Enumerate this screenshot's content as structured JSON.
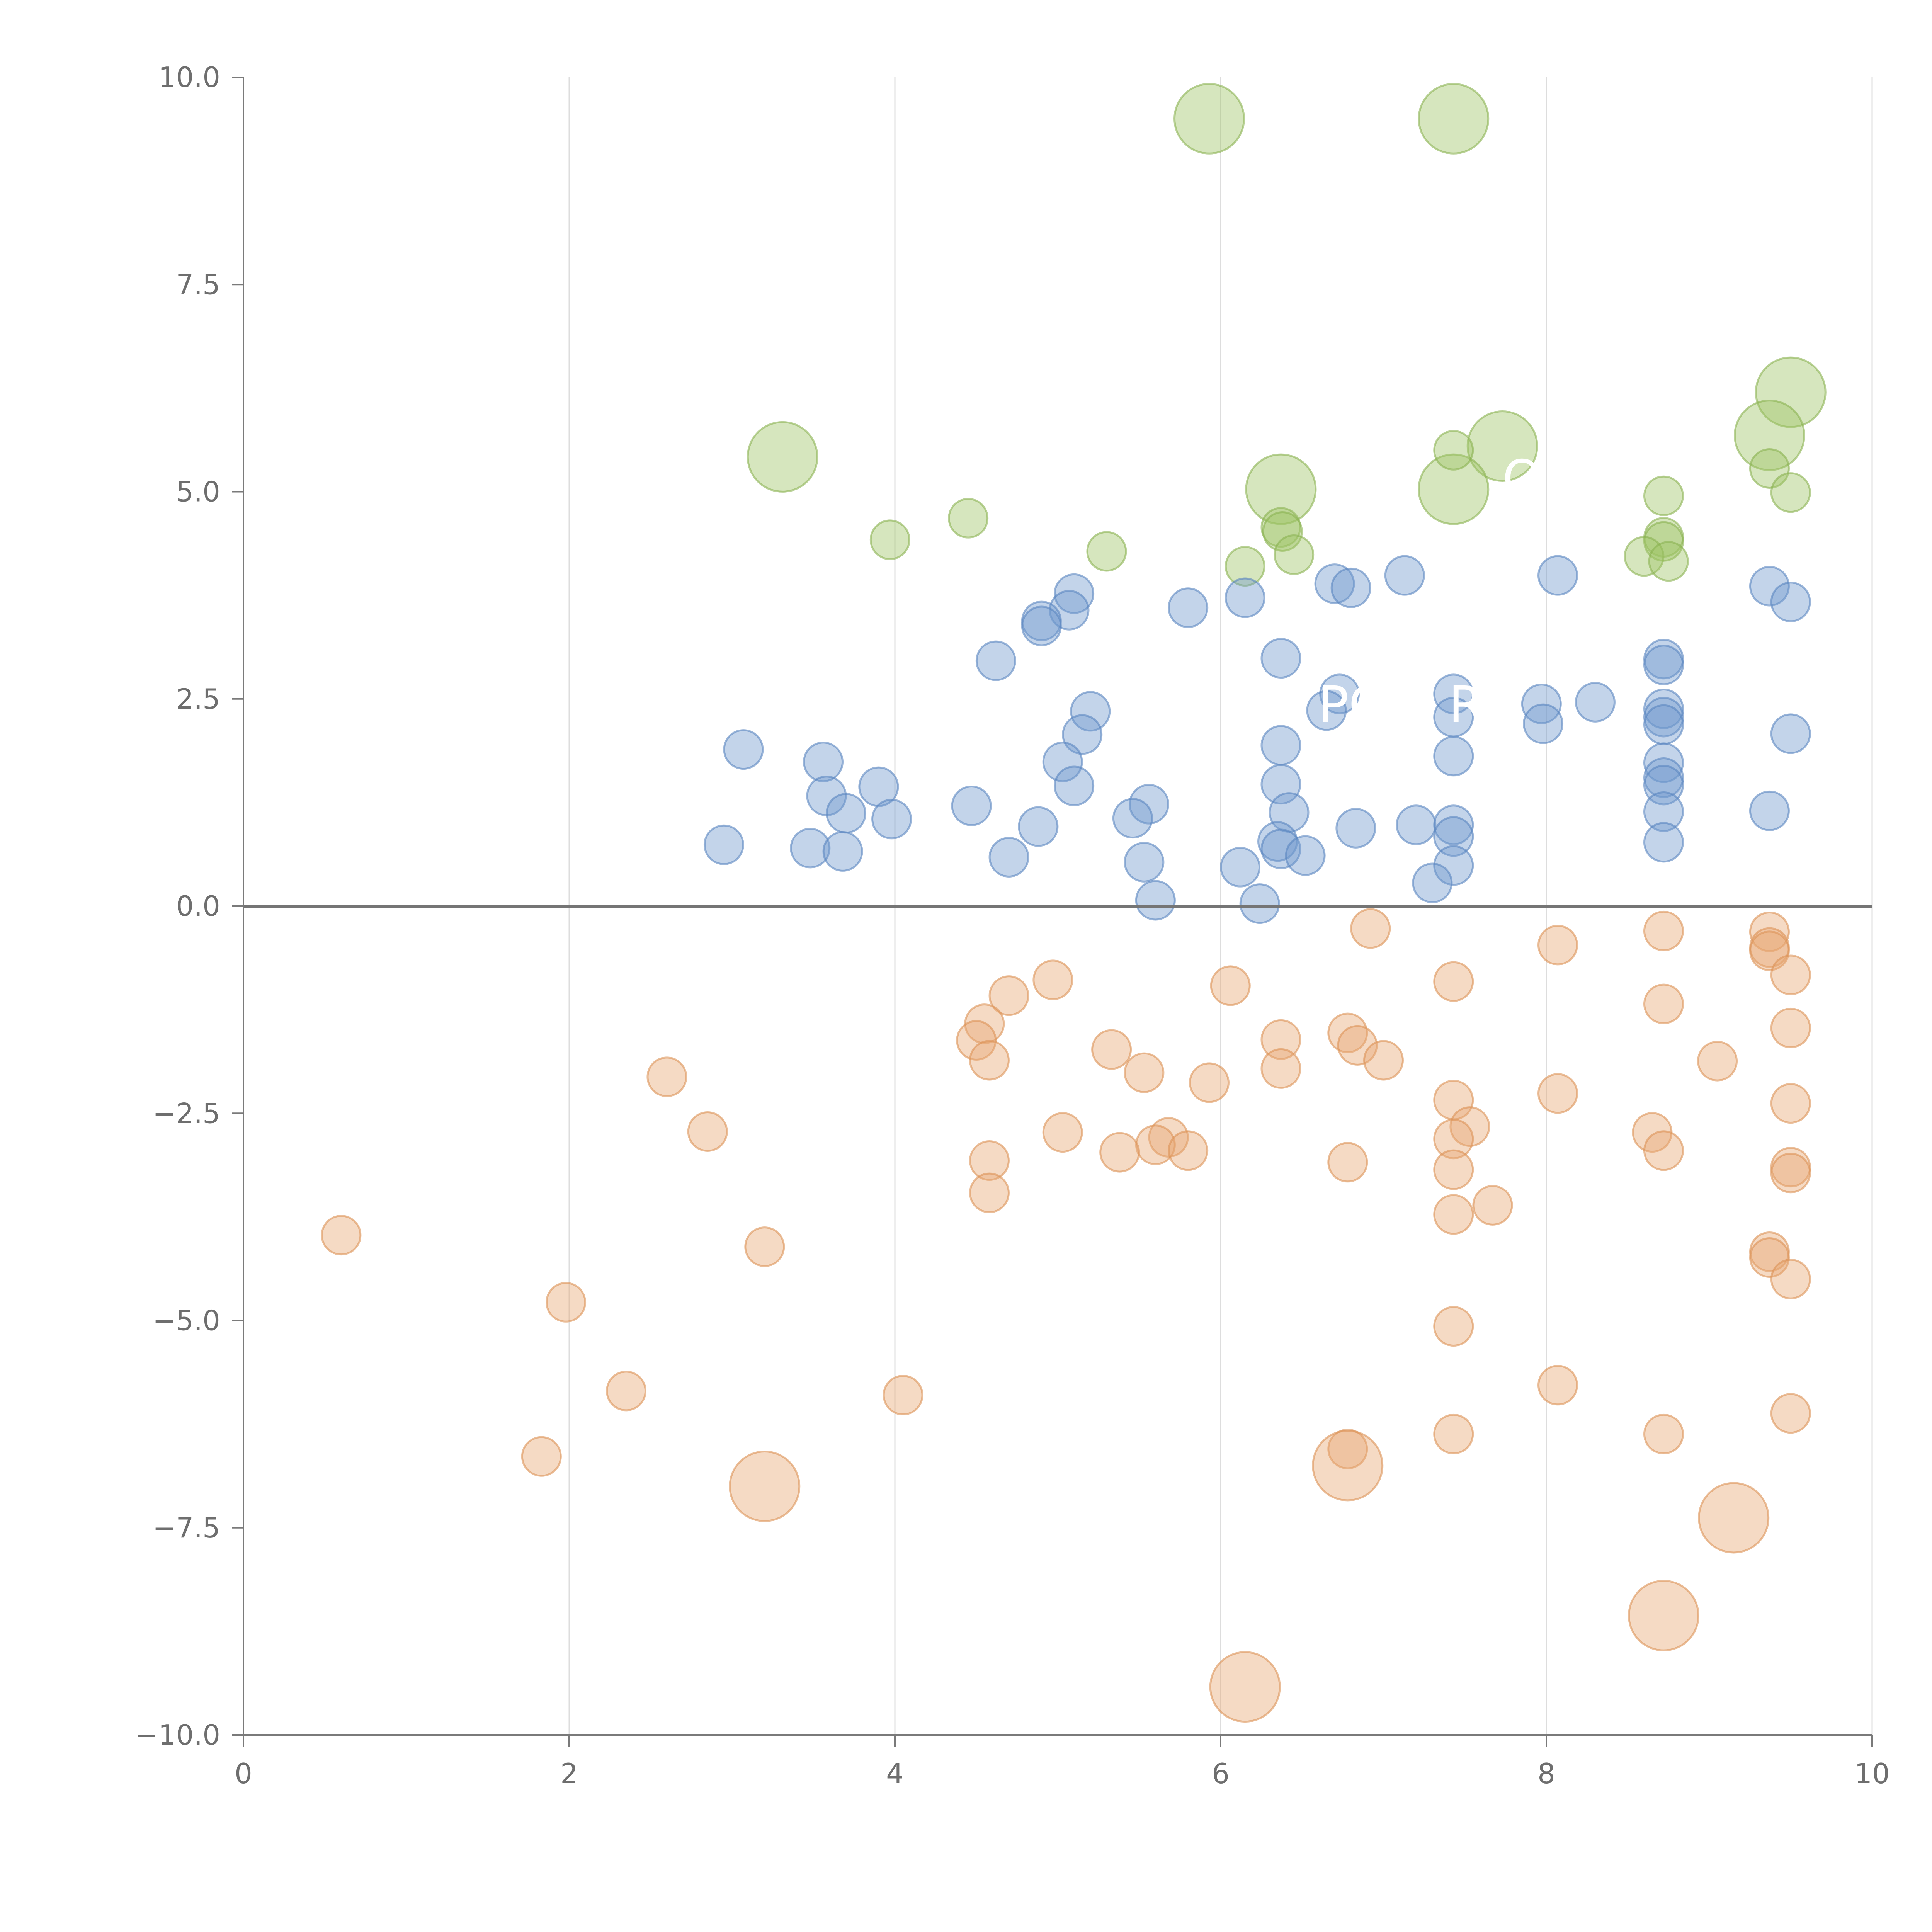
{
  "chart_data": {
    "type": "scatter",
    "title": "",
    "xlabel": "",
    "ylabel": "",
    "xlim": [
      0,
      10
    ],
    "ylim": [
      -10,
      10
    ],
    "x_ticks": [
      0,
      2,
      4,
      6,
      8,
      10
    ],
    "x_tick_labels": [
      "0",
      "2",
      "4",
      "6",
      "8",
      "10"
    ],
    "y_ticks": [
      10,
      7.5,
      5,
      2.5,
      0,
      -2.5,
      -5,
      -7.5,
      -10
    ],
    "y_tick_labels": [
      "10.0",
      "7.5",
      "5.0",
      "2.5",
      "0.0",
      "−2.5",
      "−5.0",
      "−7.5",
      "−10.0"
    ],
    "grid": "vertical",
    "zero_line": true,
    "annotations": [
      "PO",
      "R",
      "O"
    ],
    "series": [
      {
        "name": "green",
        "color": "#9ec463",
        "stroke": "#8ab351",
        "points": [
          {
            "x": 5.93,
            "y": 9.5,
            "size": 3
          },
          {
            "x": 7.43,
            "y": 9.5,
            "size": 3
          },
          {
            "x": 9.5,
            "y": 6.2,
            "size": 3
          },
          {
            "x": 9.37,
            "y": 5.68,
            "size": 3
          },
          {
            "x": 7.73,
            "y": 5.55,
            "size": 3
          },
          {
            "x": 3.31,
            "y": 5.42,
            "size": 3
          },
          {
            "x": 6.37,
            "y": 5.03,
            "size": 3
          },
          {
            "x": 7.43,
            "y": 5.03,
            "size": 3
          },
          {
            "x": 7.43,
            "y": 5.5,
            "size": 1
          },
          {
            "x": 9.37,
            "y": 5.28,
            "size": 1
          },
          {
            "x": 8.72,
            "y": 4.95,
            "size": 1
          },
          {
            "x": 9.5,
            "y": 4.99,
            "size": 1
          },
          {
            "x": 4.45,
            "y": 4.68,
            "size": 1
          },
          {
            "x": 6.37,
            "y": 4.57,
            "size": 1
          },
          {
            "x": 6.38,
            "y": 4.52,
            "size": 1
          },
          {
            "x": 3.97,
            "y": 4.42,
            "size": 1
          },
          {
            "x": 8.72,
            "y": 4.45,
            "size": 1
          },
          {
            "x": 8.72,
            "y": 4.4,
            "size": 1
          },
          {
            "x": 5.3,
            "y": 4.28,
            "size": 1
          },
          {
            "x": 6.45,
            "y": 4.24,
            "size": 1
          },
          {
            "x": 8.6,
            "y": 4.22,
            "size": 1
          },
          {
            "x": 8.75,
            "y": 4.16,
            "size": 1
          },
          {
            "x": 6.15,
            "y": 4.1,
            "size": 1
          }
        ]
      },
      {
        "name": "blue",
        "color": "#7198cd",
        "stroke": "#5a85bf",
        "points": [
          {
            "x": 7.13,
            "y": 3.99,
            "size": 1
          },
          {
            "x": 8.07,
            "y": 3.99,
            "size": 1
          },
          {
            "x": 6.7,
            "y": 3.89,
            "size": 1
          },
          {
            "x": 6.8,
            "y": 3.84,
            "size": 1
          },
          {
            "x": 9.37,
            "y": 3.86,
            "size": 1
          },
          {
            "x": 5.1,
            "y": 3.77,
            "size": 1
          },
          {
            "x": 6.15,
            "y": 3.72,
            "size": 1
          },
          {
            "x": 9.5,
            "y": 3.67,
            "size": 1
          },
          {
            "x": 5.8,
            "y": 3.6,
            "size": 1
          },
          {
            "x": 5.07,
            "y": 3.57,
            "size": 1
          },
          {
            "x": 4.9,
            "y": 3.44,
            "size": 1
          },
          {
            "x": 4.9,
            "y": 3.38,
            "size": 1
          },
          {
            "x": 6.37,
            "y": 2.99,
            "size": 1
          },
          {
            "x": 4.62,
            "y": 2.96,
            "size": 1
          },
          {
            "x": 8.72,
            "y": 2.98,
            "size": 1
          },
          {
            "x": 8.72,
            "y": 2.91,
            "size": 1
          },
          {
            "x": 6.73,
            "y": 2.56,
            "size": 1
          },
          {
            "x": 7.43,
            "y": 2.56,
            "size": 1
          },
          {
            "x": 7.97,
            "y": 2.44,
            "size": 1
          },
          {
            "x": 8.3,
            "y": 2.46,
            "size": 1
          },
          {
            "x": 8.72,
            "y": 2.38,
            "size": 1
          },
          {
            "x": 6.65,
            "y": 2.36,
            "size": 1
          },
          {
            "x": 5.2,
            "y": 2.35,
            "size": 1
          },
          {
            "x": 7.43,
            "y": 2.28,
            "size": 1
          },
          {
            "x": 8.72,
            "y": 2.28,
            "size": 1
          },
          {
            "x": 7.98,
            "y": 2.2,
            "size": 1
          },
          {
            "x": 8.72,
            "y": 2.19,
            "size": 1
          },
          {
            "x": 5.15,
            "y": 2.07,
            "size": 1
          },
          {
            "x": 9.5,
            "y": 2.08,
            "size": 1
          },
          {
            "x": 6.37,
            "y": 1.94,
            "size": 1
          },
          {
            "x": 3.07,
            "y": 1.89,
            "size": 1
          },
          {
            "x": 7.43,
            "y": 1.81,
            "size": 1
          },
          {
            "x": 3.56,
            "y": 1.74,
            "size": 1
          },
          {
            "x": 5.03,
            "y": 1.74,
            "size": 1
          },
          {
            "x": 8.72,
            "y": 1.73,
            "size": 1
          },
          {
            "x": 8.72,
            "y": 1.55,
            "size": 1
          },
          {
            "x": 6.37,
            "y": 1.47,
            "size": 1
          },
          {
            "x": 8.72,
            "y": 1.46,
            "size": 1
          },
          {
            "x": 3.9,
            "y": 1.44,
            "size": 1
          },
          {
            "x": 5.1,
            "y": 1.45,
            "size": 1
          },
          {
            "x": 3.58,
            "y": 1.33,
            "size": 1
          },
          {
            "x": 5.56,
            "y": 1.23,
            "size": 1
          },
          {
            "x": 4.47,
            "y": 1.21,
            "size": 1
          },
          {
            "x": 9.37,
            "y": 1.15,
            "size": 1
          },
          {
            "x": 8.72,
            "y": 1.14,
            "size": 1
          },
          {
            "x": 3.7,
            "y": 1.12,
            "size": 1
          },
          {
            "x": 6.42,
            "y": 1.13,
            "size": 1
          },
          {
            "x": 3.98,
            "y": 1.05,
            "size": 1
          },
          {
            "x": 5.46,
            "y": 1.06,
            "size": 1
          },
          {
            "x": 7.43,
            "y": 0.98,
            "size": 1
          },
          {
            "x": 7.2,
            "y": 0.98,
            "size": 1
          },
          {
            "x": 4.88,
            "y": 0.96,
            "size": 1
          },
          {
            "x": 6.83,
            "y": 0.94,
            "size": 1
          },
          {
            "x": 7.43,
            "y": 0.84,
            "size": 1
          },
          {
            "x": 6.35,
            "y": 0.78,
            "size": 1
          },
          {
            "x": 2.95,
            "y": 0.74,
            "size": 1
          },
          {
            "x": 8.72,
            "y": 0.77,
            "size": 1
          },
          {
            "x": 3.48,
            "y": 0.7,
            "size": 1
          },
          {
            "x": 6.37,
            "y": 0.69,
            "size": 1
          },
          {
            "x": 3.68,
            "y": 0.66,
            "size": 1
          },
          {
            "x": 6.52,
            "y": 0.61,
            "size": 1
          },
          {
            "x": 4.7,
            "y": 0.59,
            "size": 1
          },
          {
            "x": 5.53,
            "y": 0.53,
            "size": 1
          },
          {
            "x": 7.43,
            "y": 0.49,
            "size": 1
          },
          {
            "x": 6.12,
            "y": 0.47,
            "size": 1
          },
          {
            "x": 7.3,
            "y": 0.28,
            "size": 1
          },
          {
            "x": 5.6,
            "y": 0.07,
            "size": 1
          },
          {
            "x": 6.24,
            "y": 0.03,
            "size": 1
          }
        ]
      },
      {
        "name": "orange",
        "color": "#e8a872",
        "stroke": "#dc9257",
        "points": [
          {
            "x": 6.92,
            "y": -0.27,
            "size": 1
          },
          {
            "x": 8.72,
            "y": -0.3,
            "size": 1
          },
          {
            "x": 9.37,
            "y": -0.31,
            "size": 1
          },
          {
            "x": 8.07,
            "y": -0.47,
            "size": 1
          },
          {
            "x": 9.37,
            "y": -0.5,
            "size": 1
          },
          {
            "x": 9.37,
            "y": -0.54,
            "size": 1
          },
          {
            "x": 9.5,
            "y": -0.83,
            "size": 1
          },
          {
            "x": 4.97,
            "y": -0.89,
            "size": 1
          },
          {
            "x": 7.43,
            "y": -0.91,
            "size": 1
          },
          {
            "x": 6.06,
            "y": -0.96,
            "size": 1
          },
          {
            "x": 4.7,
            "y": -1.08,
            "size": 1
          },
          {
            "x": 8.72,
            "y": -1.18,
            "size": 1
          },
          {
            "x": 4.55,
            "y": -1.42,
            "size": 1
          },
          {
            "x": 9.5,
            "y": -1.47,
            "size": 1
          },
          {
            "x": 6.78,
            "y": -1.53,
            "size": 1
          },
          {
            "x": 4.5,
            "y": -1.62,
            "size": 1
          },
          {
            "x": 6.37,
            "y": -1.61,
            "size": 1
          },
          {
            "x": 6.84,
            "y": -1.68,
            "size": 1
          },
          {
            "x": 5.33,
            "y": -1.73,
            "size": 1
          },
          {
            "x": 4.58,
            "y": -1.86,
            "size": 1
          },
          {
            "x": 7.0,
            "y": -1.86,
            "size": 1
          },
          {
            "x": 9.05,
            "y": -1.87,
            "size": 1
          },
          {
            "x": 6.37,
            "y": -1.96,
            "size": 1
          },
          {
            "x": 5.53,
            "y": -2.01,
            "size": 1
          },
          {
            "x": 2.6,
            "y": -2.06,
            "size": 1
          },
          {
            "x": 5.93,
            "y": -2.13,
            "size": 1
          },
          {
            "x": 8.07,
            "y": -2.26,
            "size": 1
          },
          {
            "x": 7.43,
            "y": -2.34,
            "size": 1
          },
          {
            "x": 9.5,
            "y": -2.38,
            "size": 1
          },
          {
            "x": 7.53,
            "y": -2.66,
            "size": 1
          },
          {
            "x": 2.85,
            "y": -2.72,
            "size": 1
          },
          {
            "x": 5.03,
            "y": -2.73,
            "size": 1
          },
          {
            "x": 8.65,
            "y": -2.73,
            "size": 1
          },
          {
            "x": 5.68,
            "y": -2.79,
            "size": 1
          },
          {
            "x": 7.43,
            "y": -2.81,
            "size": 1
          },
          {
            "x": 5.6,
            "y": -2.88,
            "size": 1
          },
          {
            "x": 5.8,
            "y": -2.95,
            "size": 1
          },
          {
            "x": 8.72,
            "y": -2.95,
            "size": 1
          },
          {
            "x": 5.38,
            "y": -2.97,
            "size": 1
          },
          {
            "x": 4.58,
            "y": -3.07,
            "size": 1
          },
          {
            "x": 6.78,
            "y": -3.09,
            "size": 1
          },
          {
            "x": 9.5,
            "y": -3.15,
            "size": 1
          },
          {
            "x": 7.43,
            "y": -3.18,
            "size": 1
          },
          {
            "x": 9.5,
            "y": -3.22,
            "size": 1
          },
          {
            "x": 4.58,
            "y": -3.46,
            "size": 1
          },
          {
            "x": 7.67,
            "y": -3.61,
            "size": 1
          },
          {
            "x": 7.43,
            "y": -3.72,
            "size": 1
          },
          {
            "x": 0.6,
            "y": -3.97,
            "size": 1
          },
          {
            "x": 3.2,
            "y": -4.11,
            "size": 1
          },
          {
            "x": 9.37,
            "y": -4.17,
            "size": 1
          },
          {
            "x": 9.37,
            "y": -4.24,
            "size": 1
          },
          {
            "x": 9.5,
            "y": -4.5,
            "size": 1
          },
          {
            "x": 1.98,
            "y": -4.78,
            "size": 1
          },
          {
            "x": 7.43,
            "y": -5.07,
            "size": 1
          },
          {
            "x": 8.07,
            "y": -5.78,
            "size": 1
          },
          {
            "x": 2.35,
            "y": -5.85,
            "size": 1
          },
          {
            "x": 4.05,
            "y": -5.9,
            "size": 1
          },
          {
            "x": 9.5,
            "y": -6.12,
            "size": 1
          },
          {
            "x": 7.43,
            "y": -6.37,
            "size": 1
          },
          {
            "x": 8.72,
            "y": -6.37,
            "size": 1
          },
          {
            "x": 6.78,
            "y": -6.55,
            "size": 1
          },
          {
            "x": 1.83,
            "y": -6.64,
            "size": 1
          },
          {
            "x": 6.78,
            "y": -6.75,
            "size": 3
          },
          {
            "x": 3.2,
            "y": -7.0,
            "size": 3
          },
          {
            "x": 9.15,
            "y": -7.38,
            "size": 3
          },
          {
            "x": 8.72,
            "y": -8.56,
            "size": 3
          },
          {
            "x": 6.15,
            "y": -9.42,
            "size": 3
          }
        ]
      }
    ]
  }
}
